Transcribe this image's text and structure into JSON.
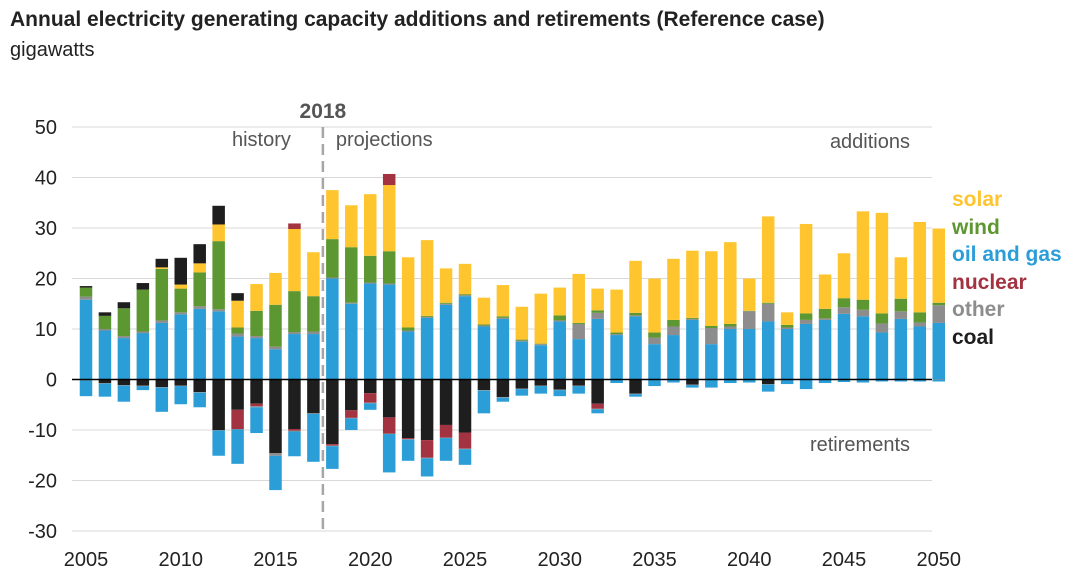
{
  "title": "Annual electricity generating capacity additions and retirements (Reference case)",
  "subtitle": "gigawatts",
  "colors": {
    "solar": "#FFC52F",
    "wind": "#5D9732",
    "oil_and_gas": "#2B9ED8",
    "nuclear": "#A33340",
    "other": "#8D8D8D",
    "coal": "#1E1E1E",
    "grid": "#D9D9D9",
    "divider": "#A6A6A6"
  },
  "annotations": {
    "marker_year_label": "2018",
    "history": "history",
    "projections": "projections",
    "additions": "additions",
    "retirements": "retirements"
  },
  "legend": [
    {
      "key": "solar",
      "label": "solar"
    },
    {
      "key": "wind",
      "label": "wind"
    },
    {
      "key": "oil_and_gas",
      "label": "oil and gas"
    },
    {
      "key": "nuclear",
      "label": "nuclear"
    },
    {
      "key": "other",
      "label": "other"
    },
    {
      "key": "coal",
      "label": "coal"
    }
  ],
  "chart_data": {
    "type": "bar",
    "stacked": true,
    "ylim": [
      -30,
      50
    ],
    "yticks": [
      -30,
      -20,
      -10,
      0,
      10,
      20,
      30,
      40,
      50
    ],
    "xticks": [
      2005,
      2010,
      2015,
      2020,
      2025,
      2030,
      2035,
      2040,
      2045,
      2050
    ],
    "marker_year": 2017.5,
    "grid": true,
    "legend_position": "right",
    "years": [
      2005,
      2006,
      2007,
      2008,
      2009,
      2010,
      2011,
      2012,
      2013,
      2014,
      2015,
      2016,
      2017,
      2018,
      2019,
      2020,
      2021,
      2022,
      2023,
      2024,
      2025,
      2026,
      2027,
      2028,
      2029,
      2030,
      2031,
      2032,
      2033,
      2034,
      2035,
      2036,
      2037,
      2038,
      2039,
      2040,
      2041,
      2042,
      2043,
      2044,
      2045,
      2046,
      2047,
      2048,
      2049,
      2050
    ],
    "series": [
      {
        "key": "oil_and_gas",
        "name": "oil and gas",
        "additions": [
          15.8,
          9.7,
          8.2,
          9.2,
          11.2,
          12.9,
          14.0,
          13.5,
          8.5,
          8.2,
          6.0,
          9.0,
          9.0,
          20.0,
          15.0,
          19.0,
          18.8,
          9.5,
          12.2,
          14.8,
          16.5,
          10.5,
          12.0,
          7.5,
          6.8,
          11.5,
          8.0,
          12.0,
          8.8,
          12.5,
          7.0,
          8.8,
          11.8,
          7.0,
          10.0,
          10.0,
          11.5,
          10.0,
          11.0,
          11.8,
          13.0,
          12.5,
          9.3,
          12.0,
          10.5,
          11.2
        ],
        "retirements": [
          -3.1,
          -2.6,
          -3.2,
          -0.8,
          -4.8,
          -3.6,
          -2.9,
          -5.0,
          -6.8,
          -5.1,
          -6.8,
          -4.9,
          -9.5,
          -4.5,
          -2.3,
          -1.3,
          -7.6,
          -4.2,
          -3.6,
          -4.5,
          -3.1,
          -4.5,
          -0.8,
          -1.3,
          -1.5,
          -1.2,
          -1.5,
          -0.8,
          -0.6,
          -0.5,
          -1.2,
          -0.5,
          -0.5,
          -1.5,
          -0.6,
          -0.5,
          -1.4,
          -0.8,
          -1.8,
          -0.6,
          -0.4,
          -0.5,
          -0.3,
          -0.3,
          -0.3,
          -0.3
        ]
      },
      {
        "key": "other",
        "name": "other",
        "additions": [
          0.6,
          0.3,
          0.4,
          0.3,
          0.5,
          0.4,
          0.5,
          0.4,
          0.6,
          0.4,
          0.5,
          0.4,
          0.5,
          0.2,
          0.2,
          0.2,
          0.2,
          0.2,
          0.2,
          0.2,
          0.2,
          0.2,
          0.2,
          0.2,
          0.2,
          0.2,
          3.0,
          1.2,
          0.2,
          0.2,
          1.3,
          1.7,
          0.2,
          3.2,
          0.5,
          3.5,
          3.5,
          0.3,
          0.8,
          0.3,
          1.3,
          1.3,
          1.8,
          1.5,
          0.8,
          3.5
        ],
        "retirements": [
          -0.1,
          -0.1,
          -0.1,
          -0.1,
          -0.1,
          -0.1,
          -0.1,
          -0.1,
          -0.1,
          -0.2,
          -0.5,
          -0.2,
          -0.1,
          -0.1,
          -0.1,
          -0.1,
          -0.1,
          -0.1,
          -0.1,
          -0.1,
          -0.1,
          -0.1,
          -0.1,
          -0.1,
          -0.1,
          -0.1,
          -0.1,
          -0.1,
          -0.1,
          -0.1,
          -0.1,
          -0.1,
          -0.1,
          -0.1,
          -0.1,
          -0.1,
          -0.1,
          -0.1,
          -0.1,
          -0.1,
          -0.1,
          -0.1,
          -0.1,
          -0.1,
          -0.1,
          -0.1
        ]
      },
      {
        "key": "wind",
        "name": "wind",
        "additions": [
          1.8,
          2.6,
          5.5,
          8.3,
          10.2,
          4.7,
          6.7,
          13.5,
          1.2,
          5.0,
          8.3,
          8.1,
          7.0,
          7.6,
          11.0,
          5.3,
          6.4,
          0.6,
          0.2,
          0.2,
          0.2,
          0.2,
          0.3,
          0.2,
          0.1,
          1.0,
          0.2,
          0.5,
          0.3,
          0.5,
          1.0,
          1.3,
          0.2,
          0.4,
          0.5,
          0.1,
          0.2,
          0.5,
          1.3,
          1.9,
          1.8,
          2.0,
          2.0,
          2.5,
          2.0,
          0.5
        ],
        "retirements": [
          0,
          0,
          0,
          0,
          0,
          0,
          0,
          0,
          0,
          0,
          0,
          0,
          0,
          0,
          0,
          0,
          0,
          0,
          0,
          0,
          0,
          0,
          0,
          0,
          0,
          0,
          0,
          0,
          0,
          0,
          0,
          0,
          0,
          0,
          0,
          0,
          0,
          0,
          0,
          0,
          0,
          0,
          0,
          0,
          0,
          0
        ]
      },
      {
        "key": "solar",
        "name": "solar",
        "additions": [
          0,
          0,
          0,
          0,
          0.3,
          0.8,
          1.8,
          3.3,
          5.3,
          5.3,
          6.3,
          12.3,
          8.7,
          9.7,
          8.3,
          12.2,
          13.1,
          13.9,
          15.0,
          6.8,
          6.0,
          5.3,
          6.2,
          6.5,
          9.9,
          5.5,
          9.7,
          4.3,
          8.5,
          10.3,
          10.7,
          12.1,
          13.3,
          14.8,
          16.2,
          6.4,
          17.1,
          2.5,
          17.7,
          6.8,
          8.9,
          17.5,
          19.9,
          8.2,
          17.9,
          14.7
        ],
        "retirements": [
          0,
          0,
          0,
          0,
          0,
          0,
          0,
          0,
          0,
          0,
          0,
          0,
          0,
          0,
          0,
          0,
          0,
          0,
          0,
          0,
          0,
          0,
          0,
          0,
          0,
          0,
          0,
          0,
          0,
          0,
          0,
          0,
          0,
          0,
          0,
          0,
          0,
          0,
          0,
          0,
          0,
          0,
          0,
          0,
          0,
          0
        ]
      },
      {
        "key": "nuclear",
        "name": "nuclear",
        "additions": [
          0,
          0,
          0,
          0,
          0,
          0,
          0,
          0,
          0,
          0,
          0,
          1.1,
          0,
          0,
          0,
          0,
          2.2,
          0,
          0,
          0,
          0,
          0,
          0,
          0,
          0,
          0,
          0,
          0,
          0,
          0,
          0,
          0,
          0,
          0,
          0,
          0,
          0,
          0,
          0,
          0,
          0,
          0,
          0,
          0,
          0,
          0
        ],
        "retirements": [
          0,
          0,
          0,
          0,
          0,
          0,
          0,
          0,
          -3.8,
          -0.5,
          0,
          -0.3,
          0,
          -0.3,
          -1.5,
          -1.9,
          -3.2,
          -0.2,
          -3.5,
          -2.5,
          -3.2,
          0,
          0,
          0,
          0,
          0,
          0,
          -1.0,
          0,
          0,
          0,
          0,
          0,
          0,
          0,
          0,
          0,
          0,
          0,
          0,
          0,
          0,
          0,
          0,
          0,
          0
        ]
      },
      {
        "key": "coal",
        "name": "coal",
        "additions": [
          0.3,
          0.7,
          1.2,
          1.3,
          1.7,
          5.3,
          3.8,
          3.7,
          1.5,
          0,
          0,
          0,
          0,
          0,
          0,
          0,
          0,
          0,
          0,
          0,
          0,
          0,
          0,
          0,
          0,
          0,
          0,
          0,
          0,
          0,
          0,
          0,
          0,
          0,
          0,
          0,
          0,
          0,
          0,
          0,
          0,
          0,
          0,
          0,
          0,
          0
        ],
        "retirements": [
          -0.1,
          -0.7,
          -1.1,
          -1.2,
          -1.5,
          -1.2,
          -2.5,
          -10.0,
          -6.0,
          -4.8,
          -14.6,
          -9.8,
          -6.7,
          -12.8,
          -6.1,
          -2.7,
          -7.5,
          -11.6,
          -12.0,
          -9.0,
          -10.5,
          -2.1,
          -3.5,
          -1.8,
          -1.2,
          -2.0,
          -1.2,
          -4.8,
          0,
          -2.8,
          0,
          0,
          -1.0,
          0,
          0,
          0,
          -0.9,
          0,
          0,
          0,
          0,
          0,
          0,
          0,
          0,
          0
        ]
      }
    ]
  }
}
